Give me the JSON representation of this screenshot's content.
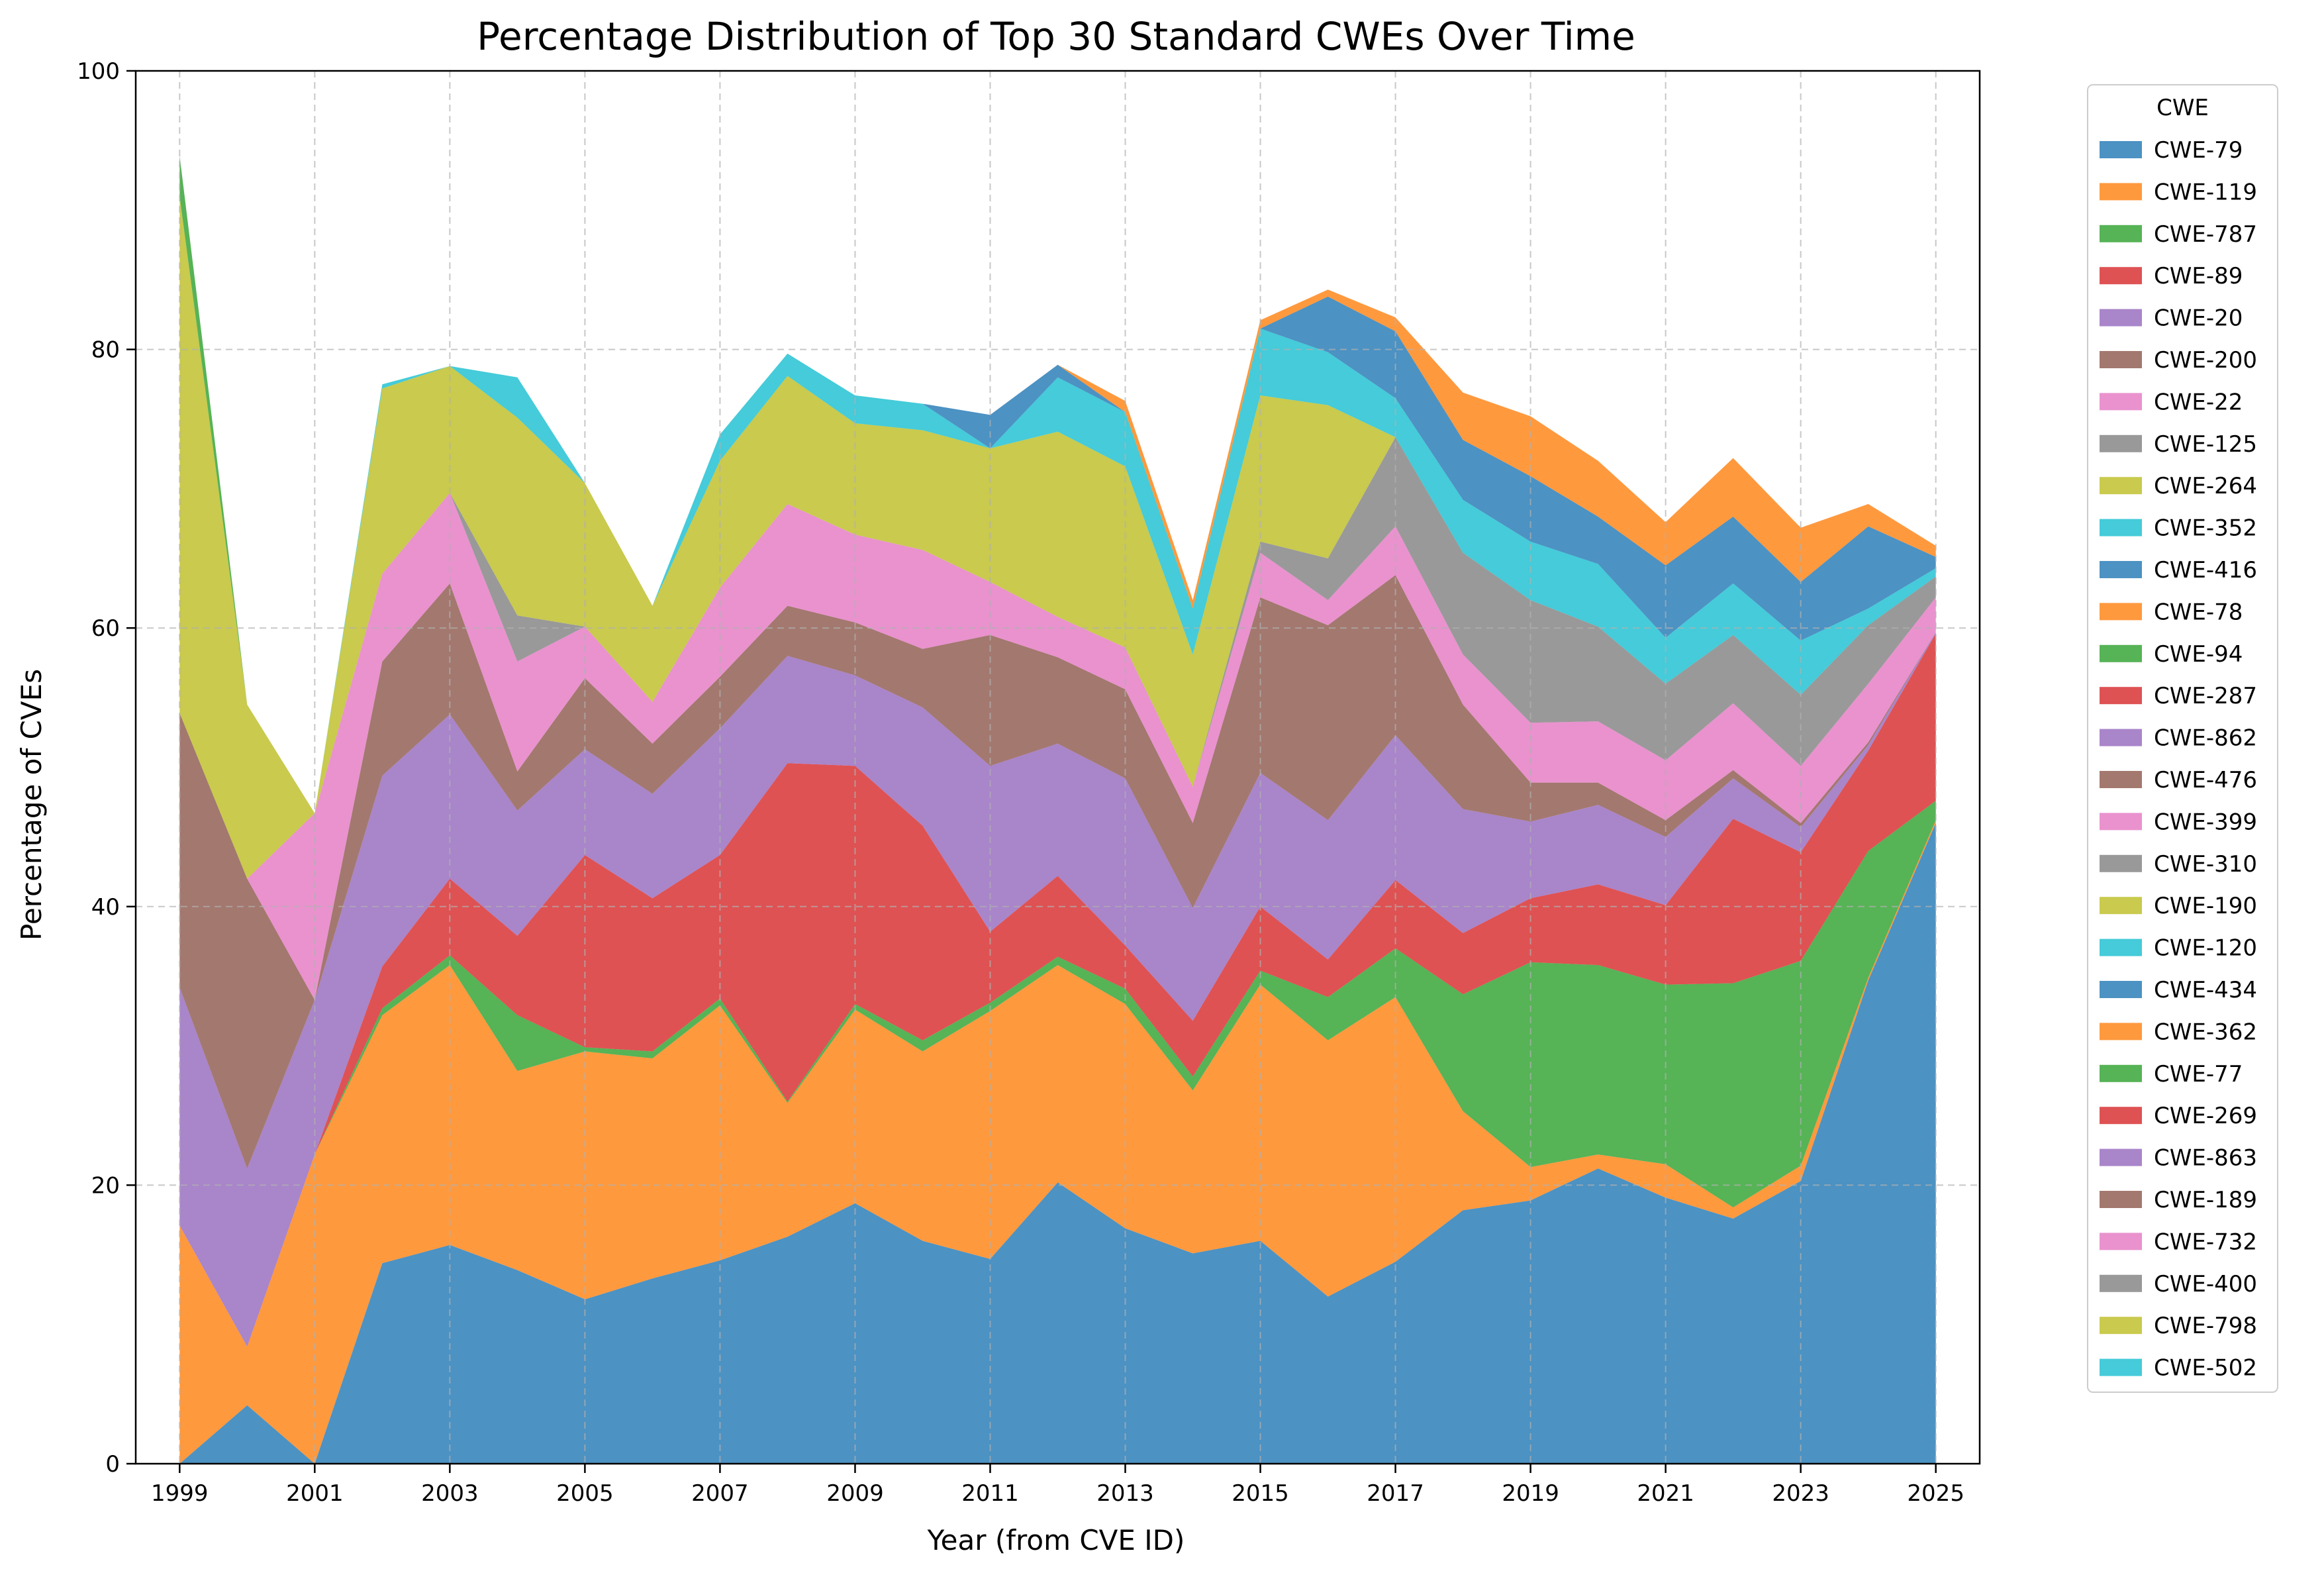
{
  "chart_data": {
    "type": "area",
    "stacked": true,
    "normalized_percent": true,
    "title": "Percentage Distribution of Top 30 Standard CWEs Over Time",
    "xlabel": "Year (from CVE ID)",
    "ylabel": "Percentage of CVEs",
    "ylim": [
      0,
      100
    ],
    "xlim": [
      1998.35,
      2025.65
    ],
    "yticks": [
      0,
      20,
      40,
      60,
      80,
      100
    ],
    "xticks": [
      1999,
      2001,
      2003,
      2005,
      2007,
      2009,
      2011,
      2013,
      2015,
      2017,
      2019,
      2021,
      2023,
      2025
    ],
    "grid": true,
    "legend": {
      "title": "CWE",
      "position": "outside-right"
    },
    "alpha": 0.8,
    "x": [
      1999,
      2000,
      2001,
      2002,
      2003,
      2004,
      2005,
      2006,
      2007,
      2008,
      2009,
      2010,
      2011,
      2012,
      2013,
      2014,
      2015,
      2016,
      2017,
      2018,
      2019,
      2020,
      2021,
      2022,
      2023,
      2024,
      2025
    ],
    "series": [
      {
        "name": "CWE-79",
        "color": "#1f77b4",
        "values": [
          0,
          4.2,
          0,
          14.4,
          15.7,
          13.9,
          11.8,
          13.3,
          14.6,
          16.3,
          18.7,
          16,
          14.7,
          20.2,
          16.9,
          15.1,
          16,
          12,
          14.5,
          18.2,
          18.9,
          21.2,
          19.1,
          17.6,
          20.3,
          34.7,
          46
        ]
      },
      {
        "name": "CWE-119",
        "color": "#ff7f0e",
        "values": [
          17.1,
          4.2,
          22.2,
          17.8,
          20.1,
          14.3,
          17.8,
          15.8,
          18.3,
          9.6,
          13.9,
          13.6,
          17.8,
          15.6,
          16.1,
          11.7,
          18.4,
          18.4,
          19,
          7.1,
          2.4,
          1,
          2.4,
          0.8,
          1.1,
          0.2,
          0.2
        ]
      },
      {
        "name": "CWE-787",
        "color": "#2ca02c",
        "values": [
          0,
          0,
          0,
          0.5,
          0.7,
          4,
          0.3,
          0.5,
          0.5,
          0.1,
          0.4,
          0.8,
          0.6,
          0.6,
          1.1,
          1,
          1,
          3.1,
          3.5,
          8.4,
          14.7,
          13.6,
          12.9,
          16.1,
          14.7,
          9.1,
          1.4
        ]
      },
      {
        "name": "CWE-89",
        "color": "#d62728",
        "values": [
          0,
          0,
          0,
          3,
          5.5,
          5.7,
          13.8,
          11,
          10.3,
          24.3,
          17.1,
          15.4,
          5.1,
          5.8,
          3.1,
          4,
          4.6,
          2.7,
          4.9,
          4.4,
          4.6,
          5.8,
          5.7,
          11.8,
          7.8,
          7.2,
          12
        ]
      },
      {
        "name": "CWE-20",
        "color": "#9467bd",
        "values": [
          17.1,
          12.8,
          11.1,
          13.7,
          11.8,
          9,
          7.6,
          7.5,
          9.1,
          7.7,
          6.5,
          8.5,
          11.9,
          9.5,
          12,
          8.1,
          9.6,
          10,
          10.4,
          8.9,
          5.5,
          5.7,
          4.9,
          2.9,
          1.8,
          0.4,
          0.1
        ]
      },
      {
        "name": "CWE-200",
        "color": "#8c564b",
        "values": [
          19.7,
          20.8,
          0,
          8.2,
          9.4,
          2.8,
          5.1,
          3.6,
          3.7,
          3.6,
          3.8,
          4.2,
          9.4,
          6.2,
          6.4,
          6.1,
          12.6,
          14,
          11.5,
          7.5,
          2.8,
          1.6,
          1.2,
          0.6,
          0.3,
          0.2,
          0
        ]
      },
      {
        "name": "CWE-22",
        "color": "#e377c2",
        "values": [
          0,
          0,
          13.4,
          6.3,
          6.5,
          7.9,
          3.7,
          3,
          6.4,
          7.3,
          6.3,
          7.1,
          3.8,
          2.9,
          3,
          2.6,
          3.2,
          1.8,
          3.5,
          3.6,
          4.3,
          4.4,
          4.3,
          4.8,
          4.1,
          4.2,
          2.5
        ]
      },
      {
        "name": "CWE-125",
        "color": "#7f7f7f",
        "values": [
          0,
          0,
          0,
          0,
          0,
          3.3,
          0,
          0,
          0,
          0,
          0,
          0,
          0,
          0,
          0,
          0,
          0.8,
          3,
          6.4,
          7.3,
          8.8,
          6.8,
          5.5,
          4.9,
          5.1,
          4.2,
          1.5
        ]
      },
      {
        "name": "CWE-264",
        "color": "#bcbd22",
        "values": [
          37.1,
          12.5,
          0,
          13.3,
          9.1,
          14.2,
          10.3,
          6.9,
          9.1,
          9.2,
          8,
          8.6,
          9.6,
          13.3,
          13,
          9.5,
          10.5,
          11,
          0,
          0,
          0,
          0,
          0,
          0,
          0,
          0,
          0
        ]
      },
      {
        "name": "CWE-352",
        "color": "#17becf",
        "values": [
          0,
          0,
          0,
          0.3,
          0,
          2.9,
          0,
          0,
          1.9,
          1.6,
          2,
          1.9,
          0,
          3.9,
          3.9,
          3.3,
          4.8,
          3.8,
          2.8,
          3.8,
          4.2,
          4.5,
          3.3,
          3.7,
          3.9,
          1.2,
          0.6
        ]
      },
      {
        "name": "CWE-416",
        "color": "#1f77b4",
        "values": [
          0,
          0,
          0,
          0,
          0,
          0,
          0,
          0,
          0,
          0,
          0,
          0,
          2.4,
          0.9,
          0,
          0,
          0,
          4,
          4.8,
          4.3,
          4.7,
          3.4,
          5.2,
          4.8,
          4.2,
          5.9,
          0.8
        ]
      },
      {
        "name": "CWE-78",
        "color": "#ff7f0e",
        "values": [
          0,
          0,
          0,
          0,
          0,
          0,
          0,
          0,
          0,
          0,
          0,
          0,
          0,
          0,
          0.8,
          0.6,
          0.6,
          0.5,
          1,
          3.4,
          4.3,
          4,
          3.1,
          4.2,
          3.9,
          1.6,
          0.8
        ]
      },
      {
        "name": "CWE-94",
        "color": "#2ca02c",
        "values": [
          2.9,
          0,
          0,
          0,
          0,
          0,
          0,
          0,
          0,
          0,
          0,
          0,
          0,
          0,
          0,
          0,
          0,
          0,
          0,
          0,
          0,
          0,
          0,
          0,
          0,
          0,
          0
        ]
      },
      {
        "name": "CWE-287",
        "color": "#d62728",
        "values": [
          0,
          0,
          0,
          0,
          0,
          0,
          0,
          0,
          0,
          0,
          0,
          0,
          0,
          0,
          0,
          0,
          0,
          0,
          0,
          0,
          0,
          0,
          0,
          0,
          0,
          0,
          0
        ]
      },
      {
        "name": "CWE-862",
        "color": "#9467bd",
        "values": [
          0,
          0,
          0,
          0,
          0,
          0,
          0,
          0,
          0,
          0,
          0,
          0,
          0,
          0,
          0,
          0,
          0,
          0,
          0,
          0,
          0,
          0,
          0,
          0,
          0,
          0,
          0
        ]
      },
      {
        "name": "CWE-476",
        "color": "#8c564b",
        "values": [
          0,
          0,
          0,
          0,
          0,
          0,
          0,
          0,
          0,
          0,
          0,
          0,
          0,
          0,
          0,
          0,
          0,
          0,
          0,
          0,
          0,
          0,
          0,
          0,
          0,
          0,
          0
        ]
      },
      {
        "name": "CWE-399",
        "color": "#e377c2",
        "values": [
          0,
          0,
          0,
          0,
          0,
          0,
          0,
          0,
          0,
          0,
          0,
          0,
          0,
          0,
          0,
          0,
          0,
          0,
          0,
          0,
          0,
          0,
          0,
          0,
          0,
          0,
          0
        ]
      },
      {
        "name": "CWE-310",
        "color": "#7f7f7f",
        "values": [
          0,
          0,
          0,
          0,
          0,
          0,
          0,
          0,
          0,
          0,
          0,
          0,
          0,
          0,
          0,
          0,
          0,
          0,
          0,
          0,
          0,
          0,
          0,
          0,
          0,
          0,
          0
        ]
      },
      {
        "name": "CWE-190",
        "color": "#bcbd22",
        "values": [
          0,
          0,
          0,
          0,
          0,
          0,
          0,
          0,
          0,
          0,
          0,
          0,
          0,
          0,
          0,
          0,
          0,
          0,
          0,
          0,
          0,
          0,
          0,
          0,
          0,
          0,
          0
        ]
      },
      {
        "name": "CWE-120",
        "color": "#17becf",
        "values": [
          0,
          0,
          0,
          0,
          0,
          0,
          0,
          0,
          0,
          0,
          0,
          0,
          0,
          0,
          0,
          0,
          0,
          0,
          0,
          0,
          0,
          0,
          0,
          0,
          0,
          0,
          0
        ]
      },
      {
        "name": "CWE-434",
        "color": "#1f77b4",
        "values": [
          0,
          0,
          0,
          0,
          0,
          0,
          0,
          0,
          0,
          0,
          0,
          0,
          0,
          0,
          0,
          0,
          0,
          0,
          0,
          0,
          0,
          0,
          0,
          0,
          0,
          0,
          0
        ]
      },
      {
        "name": "CWE-362",
        "color": "#ff7f0e",
        "values": [
          0,
          0,
          0,
          0,
          0,
          0,
          0,
          0,
          0,
          0,
          0,
          0,
          0,
          0,
          0,
          0,
          0,
          0,
          0,
          0,
          0,
          0,
          0,
          0,
          0,
          0,
          0
        ]
      },
      {
        "name": "CWE-77",
        "color": "#2ca02c",
        "values": [
          0,
          0,
          0,
          0,
          0,
          0,
          0,
          0,
          0,
          0,
          0,
          0,
          0,
          0,
          0,
          0,
          0,
          0,
          0,
          0,
          0,
          0,
          0,
          0,
          0,
          0,
          0
        ]
      },
      {
        "name": "CWE-269",
        "color": "#d62728",
        "values": [
          0,
          0,
          0,
          0,
          0,
          0,
          0,
          0,
          0,
          0,
          0,
          0,
          0,
          0,
          0,
          0,
          0,
          0,
          0,
          0,
          0,
          0,
          0,
          0,
          0,
          0,
          0
        ]
      },
      {
        "name": "CWE-863",
        "color": "#9467bd",
        "values": [
          0,
          0,
          0,
          0,
          0,
          0,
          0,
          0,
          0,
          0,
          0,
          0,
          0,
          0,
          0,
          0,
          0,
          0,
          0,
          0,
          0,
          0,
          0,
          0,
          0,
          0,
          0
        ]
      },
      {
        "name": "CWE-189",
        "color": "#8c564b",
        "values": [
          0,
          0,
          0,
          0,
          0,
          0,
          0,
          0,
          0,
          0,
          0,
          0,
          0,
          0,
          0,
          0,
          0,
          0,
          0,
          0,
          0,
          0,
          0,
          0,
          0,
          0,
          0
        ]
      },
      {
        "name": "CWE-732",
        "color": "#e377c2",
        "values": [
          0,
          0,
          0,
          0,
          0,
          0,
          0,
          0,
          0,
          0,
          0,
          0,
          0,
          0,
          0,
          0,
          0,
          0,
          0,
          0,
          0,
          0,
          0,
          0,
          0,
          0,
          0
        ]
      },
      {
        "name": "CWE-400",
        "color": "#7f7f7f",
        "values": [
          0,
          0,
          0,
          0,
          0,
          0,
          0,
          0,
          0,
          0,
          0,
          0,
          0,
          0,
          0,
          0,
          0,
          0,
          0,
          0,
          0,
          0,
          0,
          0,
          0,
          0,
          0
        ]
      },
      {
        "name": "CWE-798",
        "color": "#bcbd22",
        "values": [
          0,
          0,
          0,
          0,
          0,
          0,
          0,
          0,
          0,
          0,
          0,
          0,
          0,
          0,
          0,
          0,
          0,
          0,
          0,
          0,
          0,
          0,
          0,
          0,
          0,
          0,
          0
        ]
      },
      {
        "name": "CWE-502",
        "color": "#17becf",
        "values": [
          0,
          0,
          0,
          0,
          0,
          0,
          0,
          0,
          0,
          0,
          0,
          0,
          0,
          0,
          0,
          0,
          0,
          0,
          0,
          0,
          0,
          0,
          0,
          0,
          0,
          0,
          0
        ]
      }
    ]
  }
}
